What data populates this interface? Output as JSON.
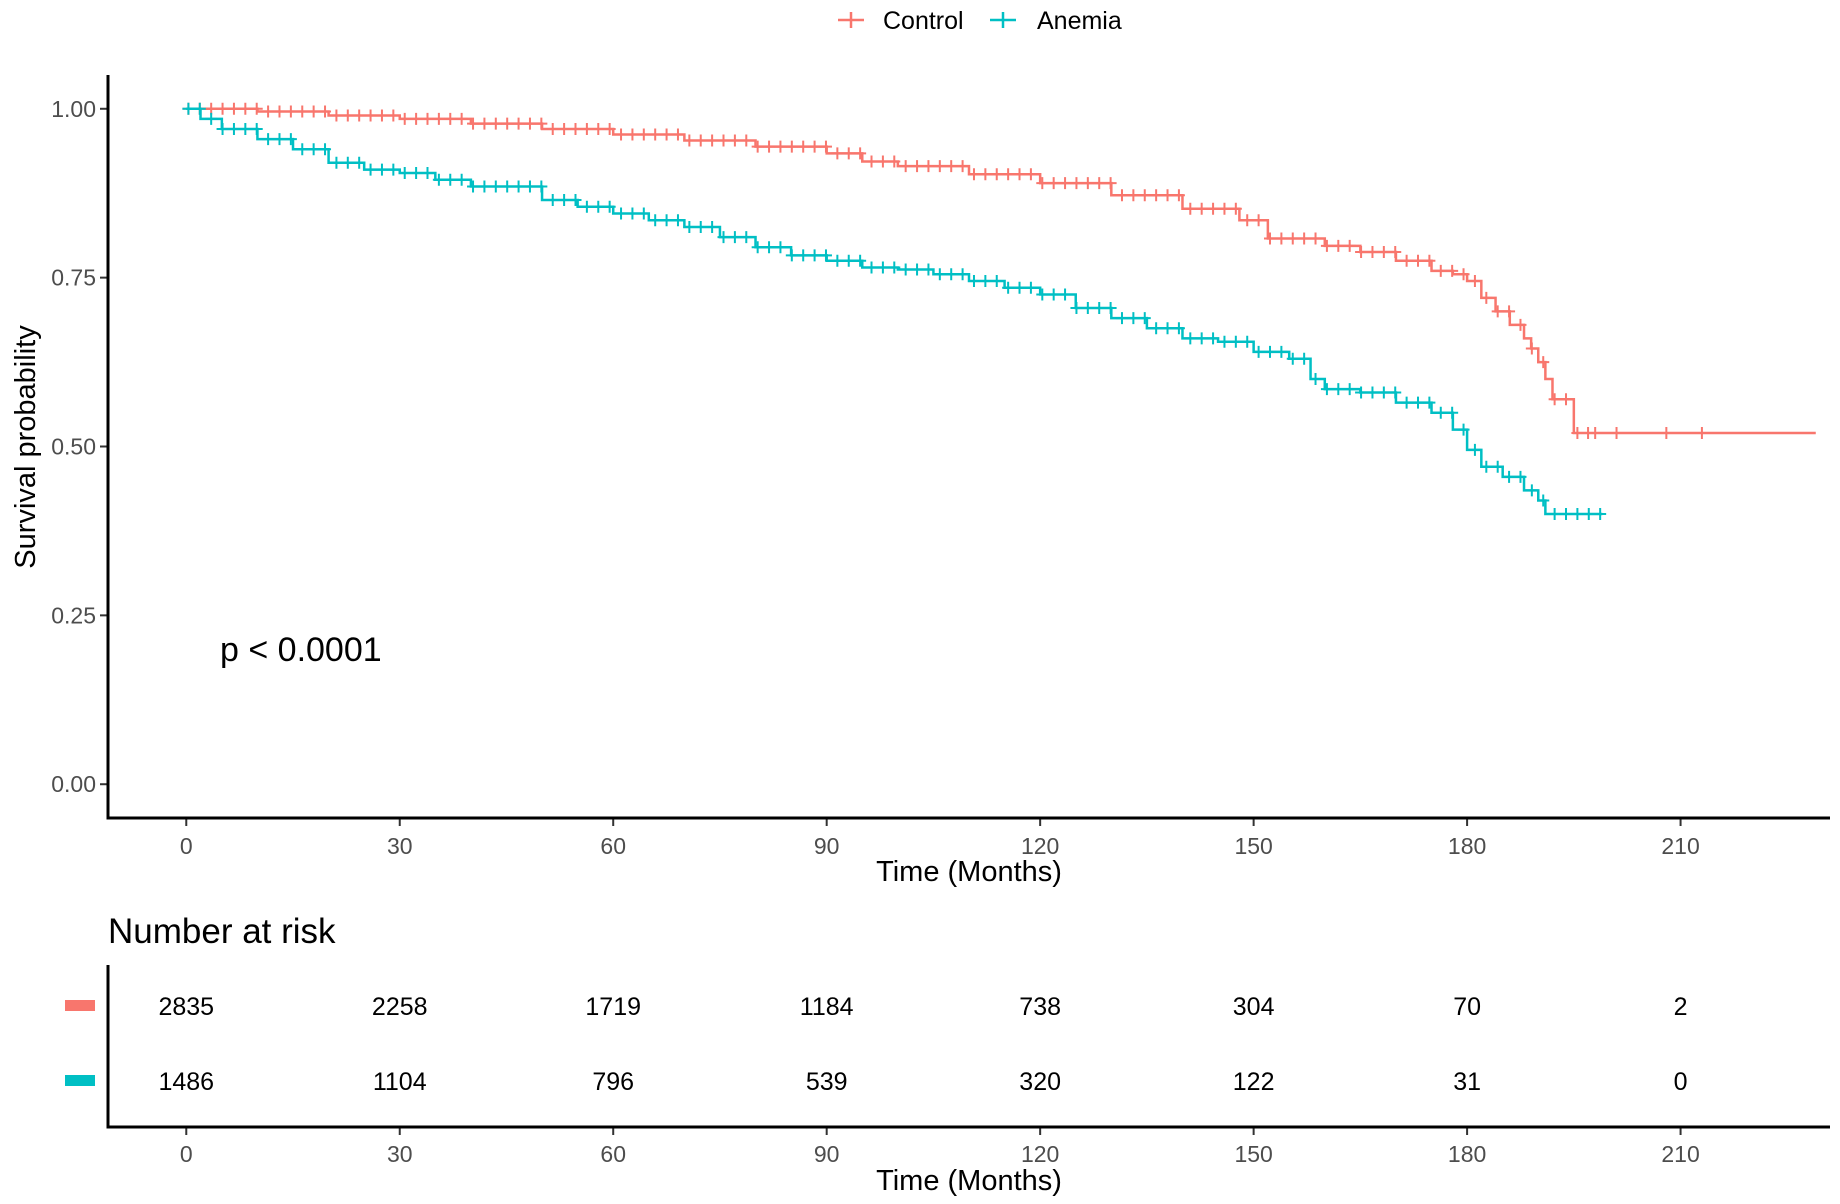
{
  "chart_data": {
    "type": "line",
    "subtype": "kaplan-meier",
    "legend": {
      "position": "top",
      "entries": [
        "Control",
        "Anemia"
      ]
    },
    "colors": {
      "Control": "#F8766D",
      "Anemia": "#00BFC4"
    },
    "ylabel": "Survival probability",
    "xlabel": "Time (Months)",
    "xlim": [
      -11,
      231
    ],
    "ylim": [
      -0.05,
      1.05
    ],
    "x_ticks": [
      0,
      30,
      60,
      90,
      120,
      150,
      180,
      210
    ],
    "y_ticks": [
      0.0,
      0.25,
      0.5,
      0.75,
      1.0
    ],
    "y_tick_labels": [
      "0.00",
      "0.25",
      "0.50",
      "0.75",
      "1.00"
    ],
    "annotation": "p < 0.0001",
    "series": [
      {
        "name": "Control",
        "x": [
          0,
          10,
          20,
          30,
          40,
          50,
          60,
          70,
          80,
          90,
          95,
          100,
          110,
          120,
          130,
          140,
          148,
          152,
          160,
          165,
          170,
          175,
          178,
          180,
          182,
          184,
          186,
          188,
          189,
          190,
          191,
          192,
          194,
          195,
          229
        ],
        "y": [
          1.0,
          0.996,
          0.99,
          0.985,
          0.978,
          0.97,
          0.962,
          0.953,
          0.944,
          0.934,
          0.922,
          0.915,
          0.903,
          0.89,
          0.872,
          0.852,
          0.835,
          0.808,
          0.797,
          0.788,
          0.775,
          0.76,
          0.755,
          0.745,
          0.72,
          0.7,
          0.68,
          0.66,
          0.645,
          0.625,
          0.6,
          0.57,
          0.57,
          0.52,
          0.52
        ]
      },
      {
        "name": "Anemia",
        "x": [
          0,
          2,
          5,
          10,
          15,
          20,
          25,
          30,
          35,
          40,
          50,
          55,
          60,
          65,
          70,
          75,
          80,
          85,
          90,
          95,
          100,
          105,
          110,
          115,
          120,
          125,
          130,
          135,
          140,
          145,
          150,
          155,
          158,
          160,
          165,
          170,
          175,
          178,
          180,
          182,
          185,
          188,
          190,
          191,
          199
        ],
        "y": [
          1.0,
          0.985,
          0.97,
          0.955,
          0.94,
          0.92,
          0.91,
          0.905,
          0.895,
          0.885,
          0.865,
          0.855,
          0.845,
          0.835,
          0.825,
          0.81,
          0.795,
          0.783,
          0.775,
          0.765,
          0.762,
          0.755,
          0.745,
          0.735,
          0.725,
          0.705,
          0.69,
          0.675,
          0.66,
          0.655,
          0.64,
          0.63,
          0.6,
          0.585,
          0.58,
          0.565,
          0.55,
          0.525,
          0.495,
          0.47,
          0.455,
          0.435,
          0.42,
          0.4,
          0.4
        ]
      }
    ],
    "risk_table": {
      "title": "Number at risk",
      "xlabel": "Time (Months)",
      "times": [
        0,
        30,
        60,
        90,
        120,
        150,
        180,
        210
      ],
      "rows": [
        {
          "name": "Control",
          "values": [
            "2835",
            "2258",
            "1719",
            "1184",
            "738",
            "304",
            "70",
            "2"
          ]
        },
        {
          "name": "Anemia",
          "values": [
            "1486",
            "1104",
            "796",
            "539",
            "320",
            "122",
            "31",
            "0"
          ]
        }
      ]
    }
  }
}
